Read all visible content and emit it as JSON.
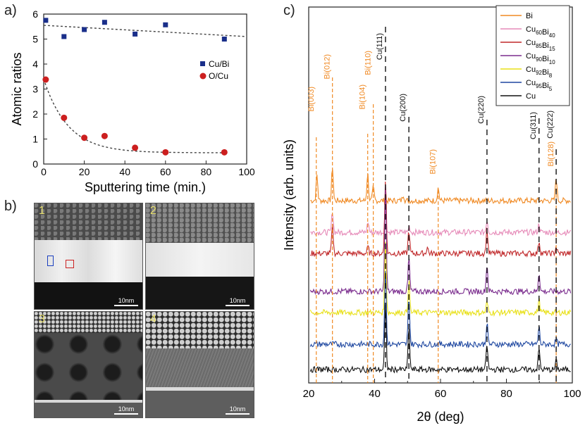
{
  "panel_labels": {
    "a": "a)",
    "b": "b)",
    "c": "c)"
  },
  "chart_data": [
    {
      "type": "scatter",
      "panel": "a",
      "xlabel": "Sputtering time (min.)",
      "ylabel": "Atomic ratios",
      "xlim": [
        0,
        100
      ],
      "ylim": [
        0,
        6
      ],
      "xticks": [
        "0",
        "20",
        "40",
        "60",
        "80",
        "100"
      ],
      "yticks": [
        "0",
        "1",
        "2",
        "3",
        "4",
        "5",
        "6"
      ],
      "legend_position": "right",
      "series": [
        {
          "name": "Cu/Bi",
          "marker": "square",
          "color": "#1a2f8a",
          "x": [
            1,
            10,
            20,
            30,
            45,
            60,
            89
          ],
          "y": [
            5.75,
            5.1,
            5.38,
            5.67,
            5.2,
            5.57,
            5.0
          ],
          "fit": {
            "x": [
              0,
              100
            ],
            "y": [
              5.55,
              5.1
            ]
          }
        },
        {
          "name": "O/Cu",
          "marker": "circle",
          "color": "#cc1f1f",
          "x": [
            1,
            10,
            20,
            30,
            45,
            60,
            89
          ],
          "y": [
            3.38,
            1.85,
            1.05,
            1.12,
            0.65,
            0.47,
            0.47
          ],
          "fit": {
            "form": "exp",
            "y0": 0.45,
            "a": 2.95,
            "tau": 12
          }
        }
      ]
    },
    {
      "type": "line",
      "panel": "c",
      "xlabel": "2θ (deg)",
      "ylabel": "Intensity (arb. units)",
      "xlim": [
        20,
        100
      ],
      "xticks": [
        "20",
        "40",
        "60",
        "80",
        "100"
      ],
      "legend_position": "top-right",
      "series": [
        {
          "name": "Bi",
          "name_parts": [
            [
              "Bi",
              ""
            ]
          ],
          "color": "#f08a24",
          "offset": 8.3,
          "peaks": [
            [
              22.5,
              1.2
            ],
            [
              27.2,
              1.6
            ],
            [
              37.9,
              1.3
            ],
            [
              39.6,
              0.6
            ],
            [
              48.7,
              0.3
            ],
            [
              59.3,
              0.6
            ],
            [
              95.1,
              1.1
            ]
          ]
        },
        {
          "name": "Cu60Bi40",
          "name_parts": [
            [
              "Cu",
              "60"
            ],
            [
              "Bi",
              "40"
            ]
          ],
          "color": "#e68ab8",
          "offset": 6.8,
          "peaks": [
            [
              27.2,
              1.0
            ],
            [
              38.0,
              0.5
            ],
            [
              43.3,
              1.0
            ],
            [
              50.5,
              0.3
            ],
            [
              74.1,
              0.6
            ],
            [
              89.9,
              0.4
            ]
          ]
        },
        {
          "name": "Cu85Bi15",
          "name_parts": [
            [
              "Cu",
              "85"
            ],
            [
              "Bi",
              "15"
            ]
          ],
          "color": "#c0282a",
          "offset": 5.8,
          "peaks": [
            [
              27.2,
              1.3
            ],
            [
              38.0,
              0.3
            ],
            [
              43.3,
              3.6
            ],
            [
              50.4,
              1.1
            ],
            [
              56.0,
              0.3
            ],
            [
              74.1,
              1.2
            ],
            [
              89.9,
              0.6
            ],
            [
              95.1,
              0.3
            ]
          ]
        },
        {
          "name": "Cu90Bi10",
          "name_parts": [
            [
              "Cu",
              "90"
            ],
            [
              "Bi",
              "10"
            ]
          ],
          "color": "#7b2d8e",
          "offset": 4.0,
          "peaks": [
            [
              43.3,
              5.0
            ],
            [
              50.4,
              1.6
            ],
            [
              74.1,
              1.3
            ],
            [
              89.9,
              0.9
            ]
          ]
        },
        {
          "name": "Cu92Bi8",
          "name_parts": [
            [
              "Cu",
              "92"
            ],
            [
              "Bi",
              "8"
            ]
          ],
          "color": "#e8e017",
          "offset": 3.0,
          "peaks": [
            [
              43.3,
              3.4
            ],
            [
              50.4,
              1.5
            ],
            [
              74.1,
              0.5
            ],
            [
              89.9,
              0.6
            ]
          ]
        },
        {
          "name": "Cu95Bi5",
          "name_parts": [
            [
              "Cu",
              "95"
            ],
            [
              "Bi",
              "5"
            ]
          ],
          "color": "#1e47a0",
          "offset": 1.5,
          "peaks": [
            [
              43.3,
              3.6
            ],
            [
              50.4,
              2.3
            ],
            [
              74.1,
              1.0
            ],
            [
              89.9,
              0.8
            ],
            [
              95.1,
              0.2
            ]
          ]
        },
        {
          "name": "Cu",
          "name_parts": [
            [
              "Cu",
              ""
            ]
          ],
          "color": "#111111",
          "offset": 0.3,
          "peaks": [
            [
              43.3,
              3.0
            ],
            [
              50.4,
              2.0
            ],
            [
              74.1,
              1.2
            ],
            [
              89.9,
              1.0
            ],
            [
              95.1,
              0.4
            ]
          ]
        }
      ],
      "reference_lines": [
        {
          "label": "Bi(003)",
          "x": 22.3,
          "style": "orange-dashed"
        },
        {
          "label": "Bi(012)",
          "x": 27.2,
          "style": "orange-dashed"
        },
        {
          "label": "Bi(104)",
          "x": 37.9,
          "style": "orange-dashed"
        },
        {
          "label": "Bi(110)",
          "x": 39.6,
          "style": "orange-dashed"
        },
        {
          "label": "Bi(107)",
          "x": 59.3,
          "style": "orange-dashed"
        },
        {
          "label": "Bi(128)",
          "x": 95.1,
          "style": "orange-dashed"
        },
        {
          "label": "Cu(111)",
          "x": 43.3,
          "style": "black-dashed"
        },
        {
          "label": "Cu(200)",
          "x": 50.4,
          "style": "black-dashed"
        },
        {
          "label": "Cu(220)",
          "x": 74.1,
          "style": "black-dashed"
        },
        {
          "label": "Cu(311)",
          "x": 89.9,
          "style": "black-dashed"
        },
        {
          "label": "Cu(222)",
          "x": 95.1,
          "style": "black-dashed"
        }
      ]
    }
  ],
  "tem_images": [
    {
      "number": "1",
      "scale": "10nm",
      "marker_colors": [
        "#1a3fbf",
        "#cc2222"
      ]
    },
    {
      "number": "2",
      "scale": "10nm"
    },
    {
      "number": "3",
      "scale": "10nm"
    },
    {
      "number": "4",
      "scale": "10nm"
    }
  ]
}
